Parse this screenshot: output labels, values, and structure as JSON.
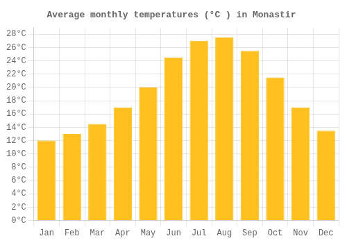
{
  "chart_data": {
    "type": "bar",
    "title": "Average monthly temperatures (°C ) in Monastir",
    "categories": [
      "Jan",
      "Feb",
      "Mar",
      "Apr",
      "May",
      "Jun",
      "Jul",
      "Aug",
      "Sep",
      "Oct",
      "Nov",
      "Dec"
    ],
    "values": [
      12,
      13,
      14.5,
      17,
      20,
      24.5,
      27,
      27.5,
      25.5,
      21.5,
      17,
      13.5
    ],
    "color": "#FFC020",
    "ylim": [
      0,
      29
    ],
    "yticks": [
      {
        "value": 0,
        "label": "0°C"
      },
      {
        "value": 2,
        "label": "2°C"
      },
      {
        "value": 4,
        "label": "4°C"
      },
      {
        "value": 6,
        "label": "6°C"
      },
      {
        "value": 8,
        "label": "8°C"
      },
      {
        "value": 10,
        "label": "10°C"
      },
      {
        "value": 12,
        "label": "12°C"
      },
      {
        "value": 14,
        "label": "14°C"
      },
      {
        "value": 16,
        "label": "16°C"
      },
      {
        "value": 18,
        "label": "18°C"
      },
      {
        "value": 20,
        "label": "20°C"
      },
      {
        "value": 22,
        "label": "22°C"
      },
      {
        "value": 24,
        "label": "24°C"
      },
      {
        "value": 26,
        "label": "26°C"
      },
      {
        "value": 28,
        "label": "28°C"
      }
    ],
    "grid": true
  }
}
